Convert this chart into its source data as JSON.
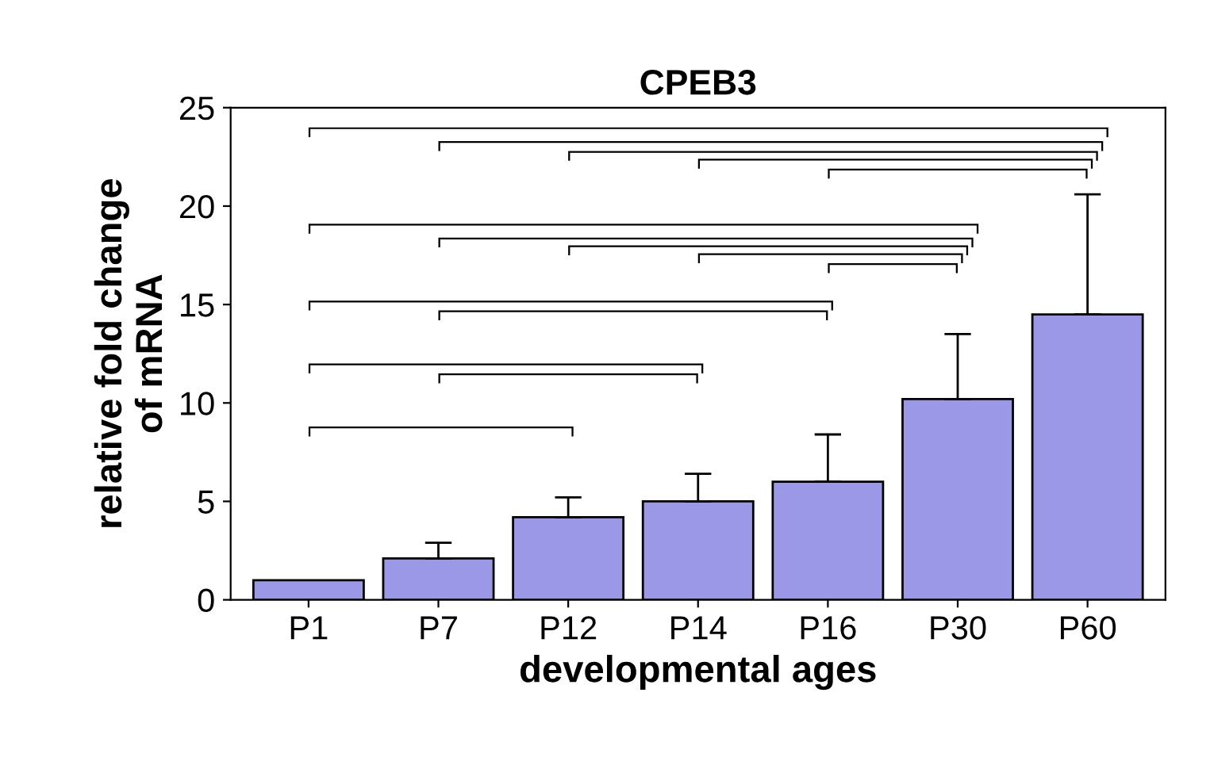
{
  "chart_data": {
    "type": "bar",
    "title": "CPEB3",
    "xlabel": "developmental ages",
    "ylabel": "relative fold change\nof mRNA",
    "categories": [
      "P1",
      "P7",
      "P12",
      "P14",
      "P16",
      "P30",
      "P60"
    ],
    "values": [
      1.0,
      2.1,
      4.2,
      5.0,
      6.0,
      10.2,
      14.5
    ],
    "errors": [
      null,
      [
        2.1,
        2.9
      ],
      [
        4.2,
        5.2
      ],
      [
        5.0,
        6.4
      ],
      [
        6.0,
        8.4
      ],
      [
        10.2,
        13.5
      ],
      [
        14.5,
        20.6
      ]
    ],
    "color": "#9c98e8",
    "ylim": [
      0,
      25
    ],
    "yticks": [
      0,
      5,
      10,
      15,
      20,
      25
    ],
    "grid": false,
    "legend": false
  }
}
